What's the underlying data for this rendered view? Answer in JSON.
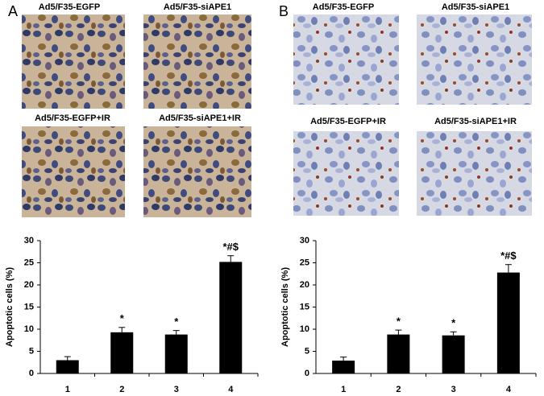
{
  "panels": [
    {
      "label": "A",
      "captions": [
        "Ad5/F35-EGFP",
        "Ad5/F35-siAPE1",
        "Ad5/F35-EGFP+IR",
        "Ad5/F35-siAPE1+IR"
      ]
    },
    {
      "label": "B",
      "captions": [
        "Ad5/F35-EGFP",
        "Ad5/F35-siAPE1",
        "Ad5/F35-EGFP+IR",
        "Ad5/F35-siAPE1+IR"
      ]
    }
  ],
  "chart_data": [
    {
      "type": "bar",
      "y_label": "Apoptotic cells (%)",
      "categories": [
        "1",
        "2",
        "3",
        "4"
      ],
      "values": [
        3.0,
        9.3,
        8.8,
        25.2
      ],
      "errors": [
        0.8,
        1.1,
        0.9,
        1.4
      ],
      "annotations": [
        null,
        "*",
        "*",
        "*#$"
      ],
      "color": "#000000",
      "ylim": [
        0,
        30
      ],
      "yticks": [
        0,
        5,
        10,
        15,
        20,
        25,
        30
      ]
    },
    {
      "type": "bar",
      "y_label": "Apoptotic cells (%)",
      "categories": [
        "1",
        "2",
        "3",
        "4"
      ],
      "values": [
        2.9,
        8.8,
        8.6,
        22.8
      ],
      "errors": [
        0.8,
        1.0,
        0.8,
        1.8
      ],
      "annotations": [
        null,
        "*",
        "*",
        "*#$"
      ],
      "color": "#000000",
      "ylim": [
        0,
        30
      ],
      "yticks": [
        0,
        5,
        10,
        15,
        20,
        25,
        30
      ]
    }
  ]
}
